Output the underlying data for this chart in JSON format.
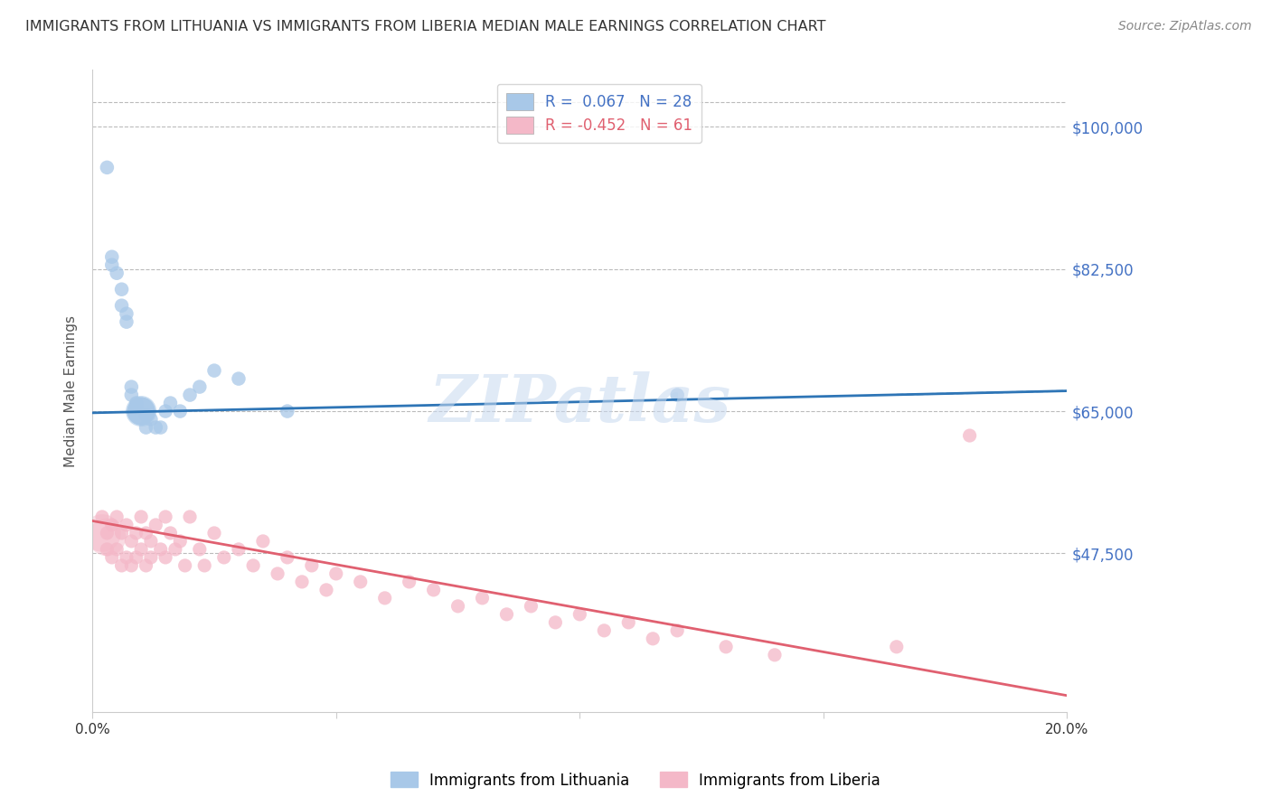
{
  "title": "IMMIGRANTS FROM LITHUANIA VS IMMIGRANTS FROM LIBERIA MEDIAN MALE EARNINGS CORRELATION CHART",
  "source": "Source: ZipAtlas.com",
  "ylabel": "Median Male Earnings",
  "watermark": "ZIPatlas",
  "xlim": [
    0.0,
    0.2
  ],
  "ylim": [
    28000,
    107000
  ],
  "yticks": [
    47500,
    65000,
    82500,
    100000
  ],
  "ytick_labels": [
    "$47,500",
    "$65,000",
    "$82,500",
    "$100,000"
  ],
  "xticks": [
    0.0,
    0.05,
    0.1,
    0.15,
    0.2
  ],
  "xtick_labels": [
    "0.0%",
    "",
    "",
    "",
    "20.0%"
  ],
  "legend_label_blue": "Immigrants from Lithuania",
  "legend_label_pink": "Immigrants from Liberia",
  "title_color": "#333333",
  "source_color": "#888888",
  "axis_color": "#4472c4",
  "grid_color": "#bbbbbb",
  "blue_color": "#a8c8e8",
  "pink_color": "#f4b8c8",
  "blue_line_color": "#2e75b6",
  "pink_line_color": "#e06070",
  "blue_scatter": {
    "x": [
      0.003,
      0.004,
      0.004,
      0.005,
      0.006,
      0.006,
      0.007,
      0.007,
      0.008,
      0.008,
      0.009,
      0.009,
      0.01,
      0.01,
      0.011,
      0.011,
      0.012,
      0.013,
      0.014,
      0.015,
      0.016,
      0.018,
      0.02,
      0.022,
      0.025,
      0.03,
      0.04,
      0.12
    ],
    "y": [
      95000,
      84000,
      83000,
      82000,
      80000,
      78000,
      77000,
      76000,
      68000,
      67000,
      66000,
      65500,
      65000,
      65000,
      64500,
      63000,
      64000,
      63000,
      63000,
      65000,
      66000,
      65000,
      67000,
      68000,
      70000,
      69000,
      65000,
      67000
    ],
    "size": [
      50,
      50,
      50,
      50,
      50,
      50,
      50,
      50,
      50,
      50,
      50,
      50,
      200,
      200,
      50,
      50,
      50,
      50,
      50,
      50,
      50,
      50,
      50,
      50,
      50,
      50,
      50,
      50
    ]
  },
  "pink_scatter": {
    "x": [
      0.002,
      0.003,
      0.003,
      0.004,
      0.004,
      0.005,
      0.005,
      0.006,
      0.006,
      0.007,
      0.007,
      0.008,
      0.008,
      0.009,
      0.009,
      0.01,
      0.01,
      0.011,
      0.011,
      0.012,
      0.012,
      0.013,
      0.014,
      0.015,
      0.015,
      0.016,
      0.017,
      0.018,
      0.019,
      0.02,
      0.022,
      0.023,
      0.025,
      0.027,
      0.03,
      0.033,
      0.035,
      0.038,
      0.04,
      0.043,
      0.045,
      0.048,
      0.05,
      0.055,
      0.06,
      0.065,
      0.07,
      0.075,
      0.08,
      0.085,
      0.09,
      0.095,
      0.1,
      0.105,
      0.11,
      0.115,
      0.12,
      0.13,
      0.14,
      0.165,
      0.18
    ],
    "y": [
      52000,
      50000,
      48000,
      51000,
      47000,
      52000,
      48000,
      50000,
      46000,
      51000,
      47000,
      49000,
      46000,
      50000,
      47000,
      52000,
      48000,
      50000,
      46000,
      49000,
      47000,
      51000,
      48000,
      52000,
      47000,
      50000,
      48000,
      49000,
      46000,
      52000,
      48000,
      46000,
      50000,
      47000,
      48000,
      46000,
      49000,
      45000,
      47000,
      44000,
      46000,
      43000,
      45000,
      44000,
      42000,
      44000,
      43000,
      41000,
      42000,
      40000,
      41000,
      39000,
      40000,
      38000,
      39000,
      37000,
      38000,
      36000,
      35000,
      36000,
      62000
    ],
    "size_large": [
      4,
      5
    ],
    "large_indices": [
      0,
      3
    ]
  }
}
